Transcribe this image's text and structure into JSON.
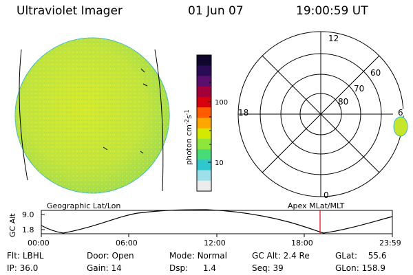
{
  "header": {
    "title": "Ultraviolet Imager",
    "date": "01 Jun 07",
    "time": "19:00:59 UT"
  },
  "colors": {
    "disk_fill": "#c6e62c",
    "disk_edge": "#39b6c8",
    "indicator": "#e1000f",
    "curve": "#000000"
  },
  "colorbar": {
    "unit_label": "photon cm^-2 s^-1",
    "ticks": [
      "100",
      "10"
    ],
    "scale": "log",
    "colors": [
      "#10062e",
      "#2a0b55",
      "#5a0e6e",
      "#a2003a",
      "#d7000f",
      "#ff5b00",
      "#ffa600",
      "#d3ea00",
      "#8fe63a",
      "#48dc78",
      "#2fc6cf",
      "#9ee0ea",
      "#ececec"
    ]
  },
  "polar": {
    "labels": {
      "top": "12",
      "left": "18",
      "right": "6",
      "bottom": "0"
    },
    "rings": [
      "60",
      "70",
      "80"
    ]
  },
  "altitude_panel": {
    "left_label": "Geographic Lat/Lon",
    "right_label": "Apex MLat/MLT",
    "ylabel": "GC Alt",
    "y_ticks": [
      "9.0",
      "1.8"
    ],
    "x_ticks": [
      "00:00",
      "06:00",
      "12:00",
      "18:00",
      "23:59"
    ]
  },
  "status": {
    "filter": {
      "label": "Flt:",
      "value": "LBHL"
    },
    "ip": {
      "label": "IP:",
      "value": "36.0"
    },
    "door": {
      "label": "Door:",
      "value": "Open"
    },
    "gain": {
      "label": "Gain:",
      "value": "14"
    },
    "mode": {
      "label": "Mode:",
      "value": "Normal"
    },
    "dsp": {
      "label": "Dsp:",
      "value": "1.4"
    },
    "gc_alt": {
      "label": "GC Alt:",
      "value": "2.4 Re"
    },
    "seq": {
      "label": "Seq:",
      "value": "39"
    },
    "glat": {
      "label": "GLat:",
      "value": "55.6"
    },
    "glon": {
      "label": "GLon:",
      "value": "158.9"
    }
  }
}
